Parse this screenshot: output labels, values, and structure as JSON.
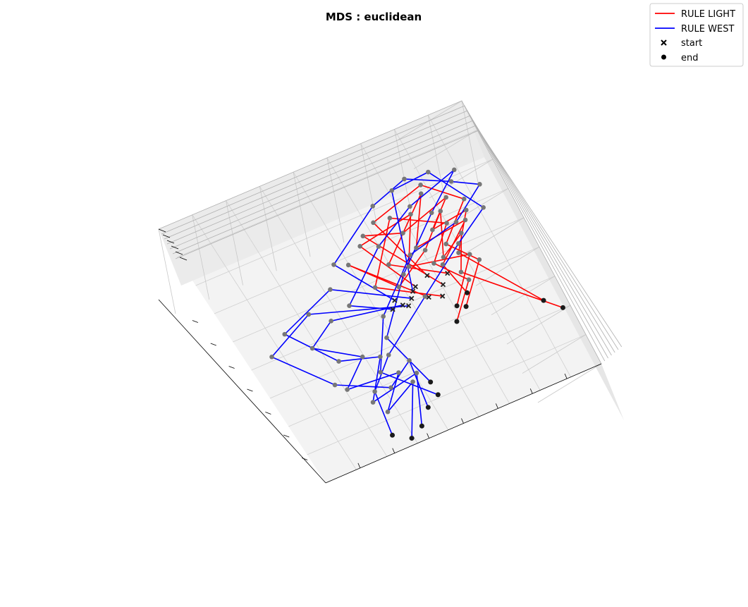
{
  "chart_data": {
    "type": "scatter",
    "projection": "3d",
    "title": "MDS : euclidean",
    "xlabel": "",
    "ylabel": "",
    "zlabel": "",
    "grid": true,
    "legend_position": "top-right",
    "legend": [
      {
        "label": "RULE LIGHT",
        "kind": "line",
        "color": "#ff0000"
      },
      {
        "label": "RULE WEST",
        "kind": "line",
        "color": "#0000ff"
      },
      {
        "label": "start",
        "kind": "marker-x",
        "color": "#000000"
      },
      {
        "label": "end",
        "kind": "marker-dot",
        "color": "#000000"
      }
    ],
    "series": [
      {
        "name": "RULE LIGHT",
        "color": "#ff0000",
        "trajectories": [
          [
            [
              0.22,
              -0.12,
              0.05
            ],
            [
              -0.12,
              0.3,
              0.1
            ],
            [
              0.08,
              0.05,
              0.2
            ],
            [
              0.35,
              0.18,
              0.05
            ],
            [
              0.55,
              0.4,
              0.15
            ],
            [
              0.42,
              0.12,
              0.22
            ],
            [
              0.6,
              0.2,
              0.1
            ],
            [
              0.48,
              -0.05,
              0.05
            ],
            [
              0.95,
              -0.55,
              0.0
            ]
          ],
          [
            [
              0.34,
              -0.08,
              0.05
            ],
            [
              0.05,
              0.45,
              0.15
            ],
            [
              0.28,
              0.35,
              0.08
            ],
            [
              0.62,
              0.48,
              0.2
            ],
            [
              0.45,
              0.3,
              0.12
            ],
            [
              0.7,
              0.32,
              0.05
            ],
            [
              0.52,
              0.1,
              0.18
            ],
            [
              0.86,
              -0.45,
              0.02
            ]
          ],
          [
            [
              0.4,
              -0.02,
              0.06
            ],
            [
              0.1,
              0.2,
              0.12
            ],
            [
              0.5,
              0.55,
              0.1
            ],
            [
              0.3,
              0.25,
              0.22
            ],
            [
              0.66,
              0.28,
              0.15
            ],
            [
              0.4,
              0.05,
              0.08
            ],
            [
              0.45,
              -0.2,
              0.02
            ]
          ],
          [
            [
              0.18,
              -0.02,
              0.05
            ],
            [
              0.0,
              0.4,
              0.18
            ],
            [
              0.38,
              0.45,
              0.1
            ],
            [
              0.2,
              0.15,
              0.2
            ],
            [
              0.58,
              0.05,
              0.12
            ],
            [
              0.35,
              -0.25,
              0.04
            ]
          ],
          [
            [
              0.28,
              0.02,
              0.06
            ],
            [
              0.15,
              0.5,
              0.12
            ],
            [
              0.52,
              0.62,
              0.18
            ],
            [
              0.72,
              0.4,
              0.08
            ],
            [
              0.48,
              0.18,
              0.14
            ],
            [
              0.62,
              -0.02,
              0.06
            ],
            [
              0.4,
              -0.28,
              0.03
            ]
          ],
          [
            [
              0.3,
              -0.15,
              0.05
            ],
            [
              -0.05,
              0.1,
              0.15
            ],
            [
              0.25,
              0.5,
              0.2
            ],
            [
              0.55,
              0.3,
              0.1
            ],
            [
              0.35,
              0.1,
              0.18
            ],
            [
              0.5,
              -0.12,
              0.04
            ],
            [
              0.3,
              -0.35,
              0.02
            ]
          ]
        ]
      },
      {
        "name": "RULE WEST",
        "color": "#0000ff",
        "trajectories": [
          [
            [
              0.05,
              -0.1,
              0.05
            ],
            [
              -0.4,
              0.0,
              0.1
            ],
            [
              -0.6,
              -0.1,
              0.2
            ],
            [
              -0.35,
              -0.3,
              0.12
            ],
            [
              -0.55,
              -0.45,
              0.18
            ],
            [
              -0.2,
              -0.5,
              0.08
            ],
            [
              -0.4,
              -0.7,
              0.15
            ],
            [
              -0.15,
              -0.6,
              0.05
            ],
            [
              -0.35,
              -0.95,
              0.02
            ]
          ],
          [
            [
              0.12,
              -0.08,
              0.06
            ],
            [
              -0.3,
              0.2,
              0.12
            ],
            [
              -0.7,
              0.05,
              0.15
            ],
            [
              -0.5,
              -0.25,
              0.2
            ],
            [
              -0.25,
              -0.35,
              0.1
            ],
            [
              -0.45,
              -0.6,
              0.16
            ],
            [
              -0.1,
              -0.55,
              0.08
            ],
            [
              -0.25,
              -0.9,
              0.03
            ]
          ],
          [
            [
              0.02,
              -0.05,
              0.05
            ],
            [
              -0.2,
              0.35,
              0.15
            ],
            [
              0.2,
              0.6,
              0.1
            ],
            [
              0.45,
              0.7,
              0.18
            ],
            [
              0.7,
              0.55,
              0.12
            ],
            [
              0.85,
              0.45,
              0.08
            ],
            [
              0.6,
              0.3,
              0.2
            ],
            [
              0.25,
              0.2,
              0.1
            ],
            [
              -0.1,
              -0.1,
              0.15
            ],
            [
              -0.3,
              -0.45,
              0.08
            ],
            [
              -0.05,
              -0.75,
              0.03
            ]
          ],
          [
            [
              0.08,
              -0.12,
              0.05
            ],
            [
              -0.5,
              0.1,
              0.1
            ],
            [
              -0.85,
              -0.05,
              0.18
            ],
            [
              -0.6,
              -0.4,
              0.12
            ],
            [
              -0.3,
              -0.55,
              0.2
            ],
            [
              -0.1,
              -0.45,
              0.1
            ],
            [
              -0.15,
              -0.8,
              0.04
            ]
          ],
          [
            [
              0.15,
              -0.04,
              0.06
            ],
            [
              0.35,
              0.65,
              0.12
            ],
            [
              0.6,
              0.68,
              0.18
            ],
            [
              0.8,
              0.3,
              0.1
            ],
            [
              0.55,
              0.15,
              0.14
            ],
            [
              0.2,
              -0.1,
              0.08
            ],
            [
              -0.2,
              -0.35,
              0.16
            ],
            [
              -0.4,
              -0.55,
              0.1
            ],
            [
              -0.45,
              -0.88,
              0.02
            ]
          ],
          [
            [
              -0.02,
              -0.1,
              0.05
            ],
            [
              -0.25,
              0.05,
              0.12
            ],
            [
              0.1,
              0.35,
              0.18
            ],
            [
              0.4,
              0.5,
              0.1
            ],
            [
              0.75,
              0.62,
              0.15
            ],
            [
              0.5,
              0.4,
              0.08
            ],
            [
              0.15,
              0.1,
              0.12
            ],
            [
              -0.15,
              -0.25,
              0.1
            ],
            [
              -0.05,
              -0.65,
              0.04
            ]
          ]
        ]
      }
    ]
  }
}
